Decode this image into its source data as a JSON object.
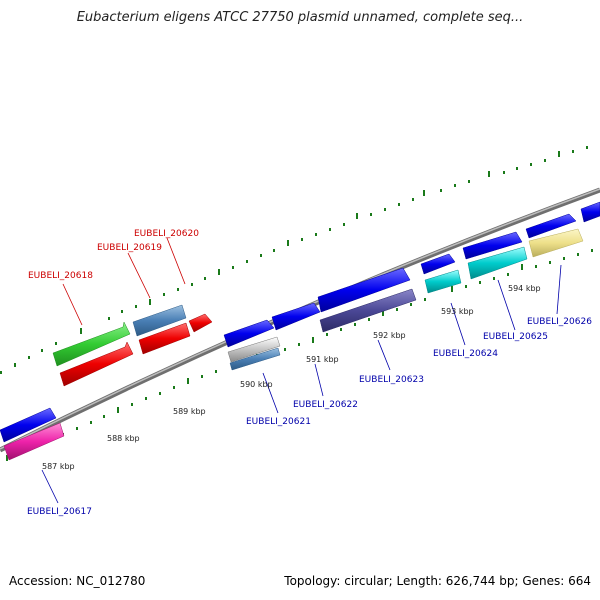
{
  "title": "Eubacterium eligens ATCC 27750 plasmid unnamed, complete seq...",
  "footer": {
    "accession": "Accession: NC_012780",
    "summary": "Topology: circular; Length: 626,744 bp; Genes: 664"
  },
  "colors": {
    "backbone": "#888888",
    "ticks": "#1a7a1a",
    "label_forward": "#cc0000",
    "label_reverse": "#0000aa"
  },
  "scale_labels": [
    "587 kbp",
    "588 kbp",
    "589 kbp",
    "590 kbp",
    "591 kbp",
    "592 kbp",
    "593 kbp",
    "594 kbp"
  ],
  "gene_labels_forward": [
    "EUBELI_20618",
    "EUBELI_20619",
    "EUBELI_20620"
  ],
  "gene_labels_reverse": [
    "EUBELI_20617",
    "EUBELI_20621",
    "EUBELI_20622",
    "EUBELI_20623",
    "EUBELI_20624",
    "EUBELI_20625",
    "EUBELI_20626"
  ]
}
